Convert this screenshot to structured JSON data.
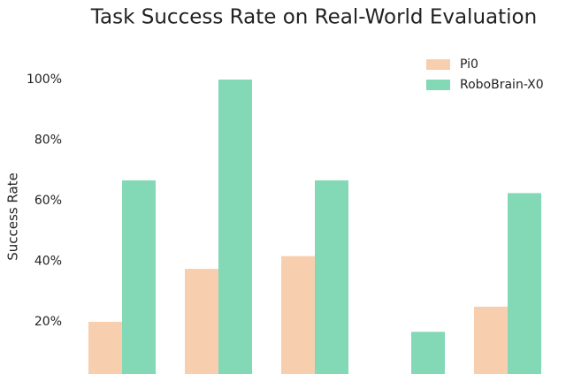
{
  "chart_data": {
    "type": "bar",
    "title": "Task Success Rate on Real-World Evaluation",
    "y_label": "Success Rate",
    "categories": [
      null,
      null,
      null,
      null,
      null
    ],
    "series": [
      {
        "name": "Pi0",
        "color": "#f7cfae",
        "values": [
          20,
          37.5,
          41.7,
          0,
          25
        ]
      },
      {
        "name": "RoboBrain-X0",
        "color": "#83d8b6",
        "values": [
          66.7,
          100,
          66.7,
          16.7,
          62.5
        ]
      }
    ],
    "ylim": [
      0,
      115
    ],
    "yticks": [
      {
        "value": 20,
        "label": "20%"
      },
      {
        "value": 40,
        "label": "40%"
      },
      {
        "value": 60,
        "label": "60%"
      },
      {
        "value": 80,
        "label": "80%"
      },
      {
        "value": 100,
        "label": "100%"
      }
    ],
    "grid": false,
    "legend": "upper right"
  }
}
